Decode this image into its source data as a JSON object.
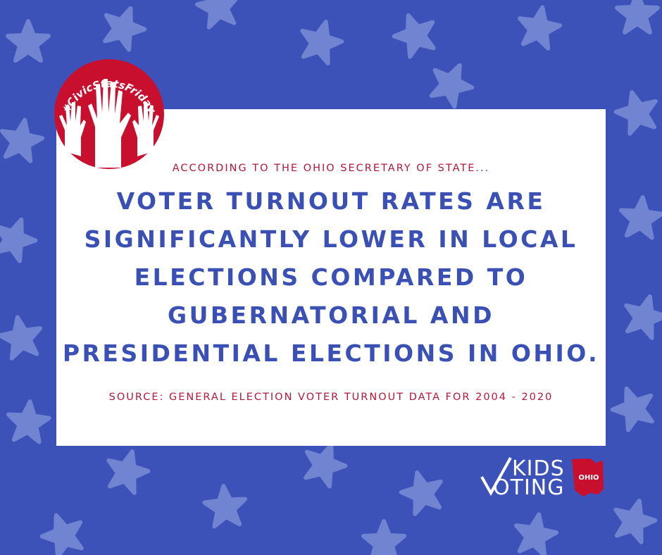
{
  "badge": {
    "text": "#CivicStatsFriday"
  },
  "card": {
    "intro": "ACCORDING TO THE OHIO SECRETARY OF STATE...",
    "headline": [
      "VOTER TURNOUT RATES ARE",
      "SIGNIFICANTLY LOWER IN LOCAL",
      "ELECTIONS COMPARED TO",
      "GUBERNATORIAL AND",
      "PRESIDENTIAL ELECTIONS IN OHIO."
    ],
    "source": "SOURCE: GENERAL ELECTION VOTER TURNOUT DATA FOR 2004 - 2020"
  },
  "logo": {
    "line1": "KIDS",
    "line2": "OTING",
    "state": "OHIO"
  }
}
